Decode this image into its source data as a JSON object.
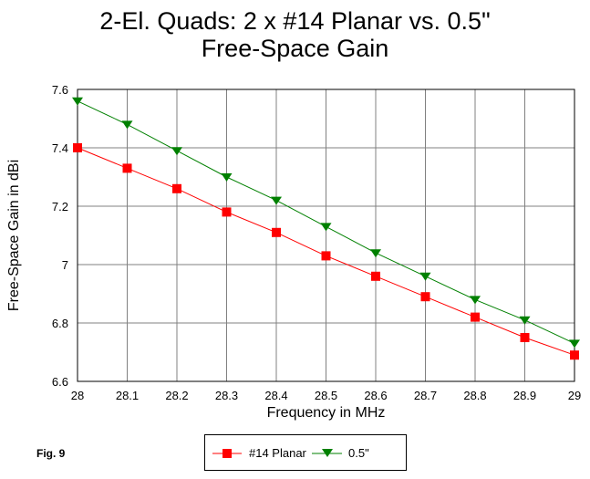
{
  "chart_data": {
    "type": "line",
    "title": "2-El. Quads: 2 x #14 Planar vs. 0.5\"",
    "subtitle": "Free-Space Gain",
    "xlabel": "Frequency in MHz",
    "ylabel": "Free-Space Gain in dBi",
    "x": [
      28,
      28.1,
      28.2,
      28.3,
      28.4,
      28.5,
      28.6,
      28.7,
      28.8,
      28.9,
      29
    ],
    "x_tick_labels": [
      "28",
      "28.1",
      "28.2",
      "28.3",
      "28.4",
      "28.5",
      "28.6",
      "28.7",
      "28.8",
      "28.9",
      "29"
    ],
    "y_ticks": [
      7.6,
      7.4,
      7.2,
      7,
      6.8,
      6.6
    ],
    "y_tick_labels": [
      "7.6",
      "7.4",
      "7.2",
      "7",
      "6.8",
      "6.6"
    ],
    "xlim": [
      28,
      29
    ],
    "ylim": [
      6.6,
      7.6
    ],
    "grid": true,
    "legend_position": "bottom-center",
    "series": [
      {
        "name": "#14 Planar",
        "color": "#ff0000",
        "marker": "square",
        "values": [
          7.4,
          7.33,
          7.26,
          7.18,
          7.11,
          7.03,
          6.96,
          6.89,
          6.82,
          6.75,
          6.69
        ]
      },
      {
        "name": "0.5\"",
        "color": "#008000",
        "marker": "triangle-down",
        "values": [
          7.56,
          7.48,
          7.39,
          7.3,
          7.22,
          7.13,
          7.04,
          6.96,
          6.88,
          6.81,
          6.73
        ]
      }
    ]
  },
  "figure_label": "Fig. 9"
}
